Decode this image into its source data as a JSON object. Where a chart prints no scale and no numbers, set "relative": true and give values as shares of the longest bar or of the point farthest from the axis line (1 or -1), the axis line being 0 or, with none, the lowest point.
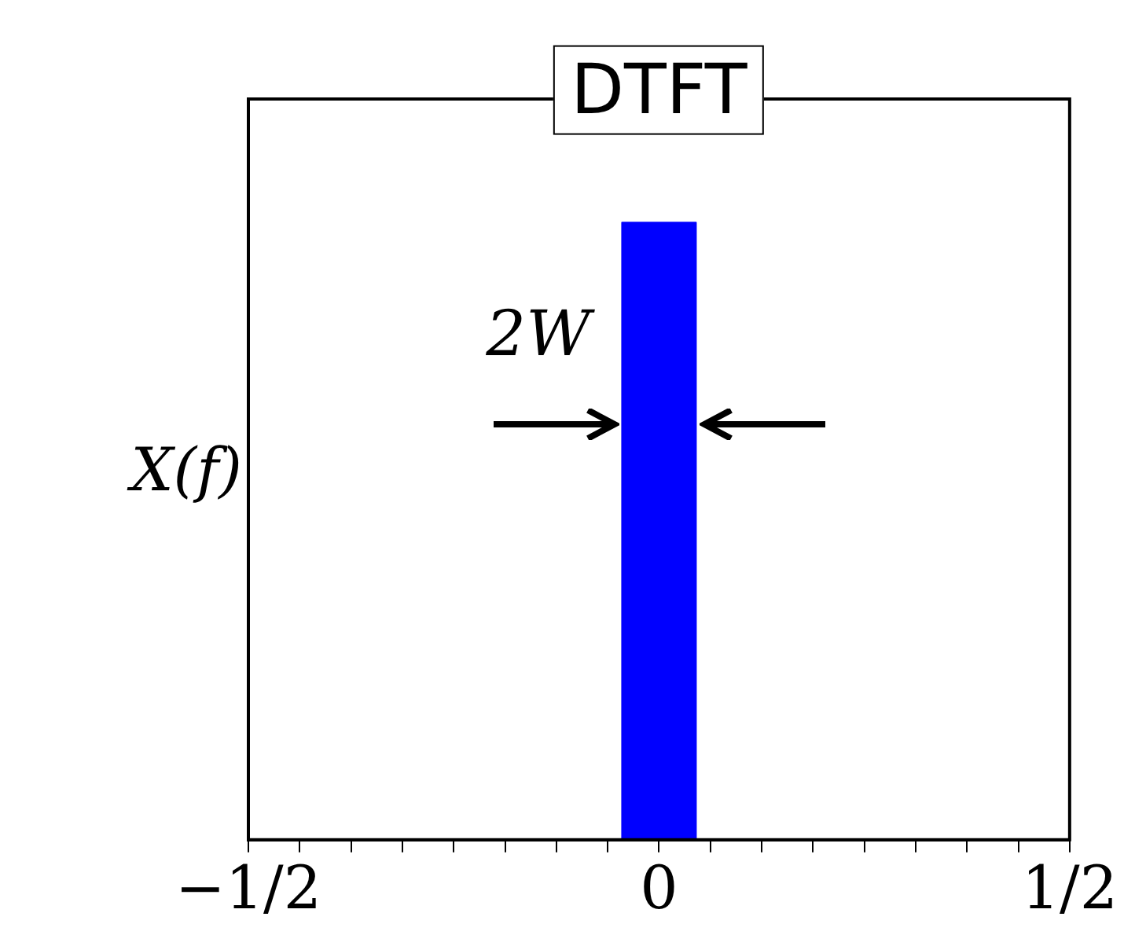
{
  "chart_data": {
    "type": "area",
    "title": "DTFT",
    "ylabel": "X(f)",
    "relative": true,
    "x": [
      -0.5,
      -0.045,
      -0.045,
      0.045,
      0.045,
      0.5
    ],
    "series": [
      {
        "color": "#0000ff",
        "values": [
          0,
          0,
          1,
          1,
          0,
          0
        ]
      }
    ],
    "xlim": [
      -0.5,
      0.5
    ],
    "xticks": [
      {
        "value": -0.5,
        "label": "−1/2"
      },
      {
        "value": -0.4375,
        "label": null
      },
      {
        "value": -0.375,
        "label": null
      },
      {
        "value": -0.3125,
        "label": null
      },
      {
        "value": -0.25,
        "label": null
      },
      {
        "value": -0.1875,
        "label": null
      },
      {
        "value": -0.125,
        "label": null
      },
      {
        "value": -0.0625,
        "label": null
      },
      0,
      {
        "value": 0.0625,
        "label": null
      },
      {
        "value": 0.125,
        "label": null
      },
      {
        "value": 0.1875,
        "label": null
      },
      {
        "value": 0.25,
        "label": null
      },
      {
        "value": 0.3125,
        "label": null
      },
      {
        "value": 0.375,
        "label": null
      },
      {
        "value": 0.4375,
        "label": null
      },
      {
        "value": 0.5,
        "label": "1/2"
      }
    ],
    "annotations": [
      "2W"
    ],
    "grid": false,
    "legend": false
  }
}
